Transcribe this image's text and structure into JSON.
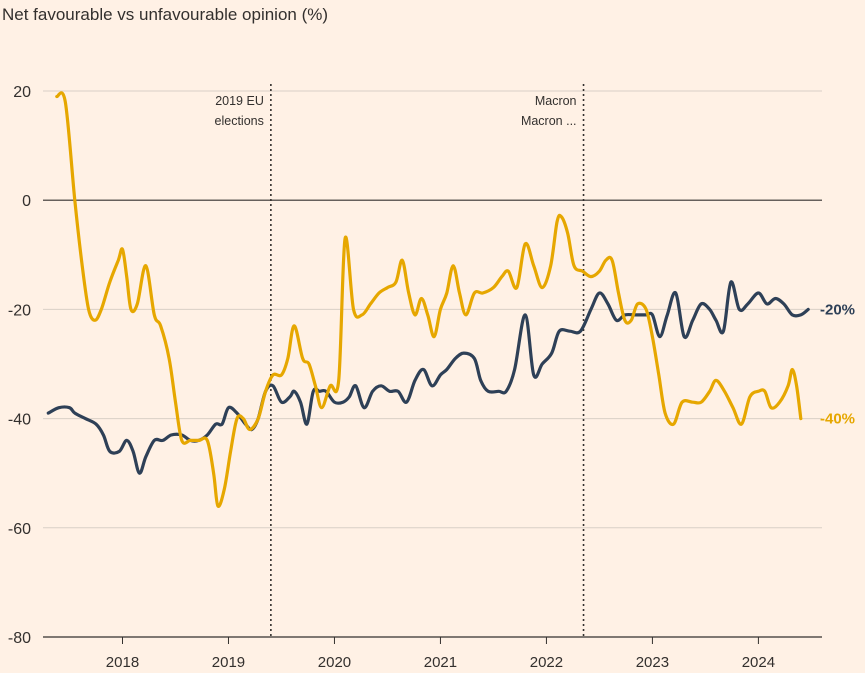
{
  "chart_data": {
    "type": "line",
    "title": "Net favourable vs unfavourable opinion (%)",
    "xlabel": "",
    "ylabel": "",
    "ylim": [
      -80,
      20
    ],
    "xlim": [
      2017.25,
      2024.6
    ],
    "yticks": [
      20,
      0,
      -20,
      -40,
      -60,
      -80
    ],
    "xticks": [
      {
        "label": "2018",
        "value": 2018
      },
      {
        "label": "2019",
        "value": 2019
      },
      {
        "label": "2020",
        "value": 2020
      },
      {
        "label": "2021",
        "value": 2021
      },
      {
        "label": "2022",
        "value": 2022
      },
      {
        "label": "2023",
        "value": 2023
      },
      {
        "label": "2024",
        "value": 2024
      }
    ],
    "annotations": [
      {
        "x": 2019.4,
        "lines": [
          "2019 EU",
          "elections"
        ]
      },
      {
        "x": 2022.35,
        "lines": [
          "Macron",
          "Macron ..."
        ]
      }
    ],
    "colors": {
      "background": "#fff1e5",
      "grid": "#d9d0c6",
      "zero": "#33302e",
      "navy": "#2e4057",
      "gold": "#e6a700"
    },
    "series": [
      {
        "name": "navy",
        "color": "#2e4057",
        "end_label": "-20%",
        "points": [
          [
            2017.3,
            -39
          ],
          [
            2017.4,
            -38
          ],
          [
            2017.5,
            -38
          ],
          [
            2017.55,
            -39
          ],
          [
            2017.65,
            -40
          ],
          [
            2017.75,
            -41
          ],
          [
            2017.82,
            -43
          ],
          [
            2017.88,
            -46
          ],
          [
            2017.97,
            -46
          ],
          [
            2018.04,
            -44
          ],
          [
            2018.1,
            -46
          ],
          [
            2018.16,
            -50
          ],
          [
            2018.22,
            -47
          ],
          [
            2018.3,
            -44
          ],
          [
            2018.38,
            -44
          ],
          [
            2018.46,
            -43
          ],
          [
            2018.56,
            -43
          ],
          [
            2018.64,
            -44
          ],
          [
            2018.72,
            -44
          ],
          [
            2018.8,
            -43
          ],
          [
            2018.88,
            -41
          ],
          [
            2018.94,
            -41
          ],
          [
            2019.0,
            -38
          ],
          [
            2019.08,
            -39
          ],
          [
            2019.16,
            -41
          ],
          [
            2019.22,
            -42
          ],
          [
            2019.28,
            -40
          ],
          [
            2019.35,
            -35
          ],
          [
            2019.42,
            -34
          ],
          [
            2019.5,
            -37
          ],
          [
            2019.58,
            -36
          ],
          [
            2019.62,
            -35
          ],
          [
            2019.68,
            -37
          ],
          [
            2019.74,
            -41
          ],
          [
            2019.8,
            -35
          ],
          [
            2019.86,
            -35
          ],
          [
            2019.92,
            -35
          ],
          [
            2020.0,
            -37
          ],
          [
            2020.08,
            -37
          ],
          [
            2020.14,
            -36
          ],
          [
            2020.2,
            -34
          ],
          [
            2020.28,
            -38
          ],
          [
            2020.36,
            -35
          ],
          [
            2020.44,
            -34
          ],
          [
            2020.52,
            -35
          ],
          [
            2020.6,
            -35
          ],
          [
            2020.68,
            -37
          ],
          [
            2020.76,
            -33
          ],
          [
            2020.84,
            -31
          ],
          [
            2020.92,
            -34
          ],
          [
            2021.0,
            -32
          ],
          [
            2021.06,
            -31
          ],
          [
            2021.14,
            -29
          ],
          [
            2021.22,
            -28
          ],
          [
            2021.32,
            -29
          ],
          [
            2021.38,
            -33
          ],
          [
            2021.45,
            -35
          ],
          [
            2021.55,
            -35
          ],
          [
            2021.62,
            -35
          ],
          [
            2021.7,
            -31
          ],
          [
            2021.8,
            -21
          ],
          [
            2021.88,
            -32
          ],
          [
            2021.96,
            -30
          ],
          [
            2022.05,
            -28
          ],
          [
            2022.12,
            -24
          ],
          [
            2022.22,
            -24
          ],
          [
            2022.32,
            -24
          ],
          [
            2022.42,
            -20
          ],
          [
            2022.5,
            -17
          ],
          [
            2022.58,
            -19
          ],
          [
            2022.66,
            -22
          ],
          [
            2022.74,
            -21
          ],
          [
            2022.84,
            -21
          ],
          [
            2022.94,
            -21
          ],
          [
            2023.0,
            -21
          ],
          [
            2023.07,
            -25
          ],
          [
            2023.14,
            -21
          ],
          [
            2023.22,
            -17
          ],
          [
            2023.3,
            -25
          ],
          [
            2023.38,
            -22
          ],
          [
            2023.46,
            -19
          ],
          [
            2023.54,
            -20
          ],
          [
            2023.6,
            -22
          ],
          [
            2023.67,
            -24
          ],
          [
            2023.74,
            -15
          ],
          [
            2023.82,
            -20
          ],
          [
            2023.9,
            -19
          ],
          [
            2024.0,
            -17
          ],
          [
            2024.08,
            -19
          ],
          [
            2024.16,
            -18
          ],
          [
            2024.24,
            -19
          ],
          [
            2024.32,
            -21
          ],
          [
            2024.4,
            -21
          ],
          [
            2024.47,
            -20
          ]
        ]
      },
      {
        "name": "gold",
        "color": "#e6a700",
        "end_label": "-40%",
        "points": [
          [
            2017.38,
            19
          ],
          [
            2017.46,
            18
          ],
          [
            2017.55,
            0
          ],
          [
            2017.62,
            -12
          ],
          [
            2017.68,
            -20
          ],
          [
            2017.74,
            -22
          ],
          [
            2017.8,
            -20
          ],
          [
            2017.88,
            -15
          ],
          [
            2017.96,
            -11
          ],
          [
            2018.0,
            -9
          ],
          [
            2018.04,
            -14
          ],
          [
            2018.08,
            -20
          ],
          [
            2018.14,
            -19
          ],
          [
            2018.22,
            -12
          ],
          [
            2018.3,
            -21
          ],
          [
            2018.36,
            -23
          ],
          [
            2018.44,
            -29
          ],
          [
            2018.5,
            -37
          ],
          [
            2018.56,
            -44
          ],
          [
            2018.64,
            -44
          ],
          [
            2018.72,
            -44
          ],
          [
            2018.8,
            -44
          ],
          [
            2018.86,
            -50
          ],
          [
            2018.9,
            -56
          ],
          [
            2018.96,
            -53
          ],
          [
            2019.02,
            -46
          ],
          [
            2019.08,
            -40
          ],
          [
            2019.14,
            -40
          ],
          [
            2019.2,
            -42
          ],
          [
            2019.28,
            -40
          ],
          [
            2019.35,
            -35
          ],
          [
            2019.42,
            -32
          ],
          [
            2019.5,
            -32
          ],
          [
            2019.56,
            -29
          ],
          [
            2019.62,
            -23
          ],
          [
            2019.7,
            -29
          ],
          [
            2019.76,
            -30
          ],
          [
            2019.82,
            -34
          ],
          [
            2019.88,
            -38
          ],
          [
            2019.96,
            -34
          ],
          [
            2020.04,
            -33
          ],
          [
            2020.1,
            -7
          ],
          [
            2020.18,
            -20
          ],
          [
            2020.26,
            -21
          ],
          [
            2020.34,
            -19
          ],
          [
            2020.42,
            -17
          ],
          [
            2020.5,
            -16
          ],
          [
            2020.58,
            -15
          ],
          [
            2020.64,
            -11
          ],
          [
            2020.7,
            -17
          ],
          [
            2020.76,
            -21
          ],
          [
            2020.82,
            -18
          ],
          [
            2020.88,
            -21
          ],
          [
            2020.94,
            -25
          ],
          [
            2021.0,
            -20
          ],
          [
            2021.06,
            -17
          ],
          [
            2021.12,
            -12
          ],
          [
            2021.18,
            -17
          ],
          [
            2021.24,
            -21
          ],
          [
            2021.32,
            -17
          ],
          [
            2021.4,
            -17
          ],
          [
            2021.5,
            -16
          ],
          [
            2021.58,
            -14
          ],
          [
            2021.64,
            -13
          ],
          [
            2021.72,
            -16
          ],
          [
            2021.8,
            -8
          ],
          [
            2021.88,
            -12
          ],
          [
            2021.96,
            -16
          ],
          [
            2022.04,
            -12
          ],
          [
            2022.1,
            -4
          ],
          [
            2022.14,
            -3
          ],
          [
            2022.2,
            -6
          ],
          [
            2022.26,
            -12
          ],
          [
            2022.34,
            -13
          ],
          [
            2022.42,
            -14
          ],
          [
            2022.5,
            -13
          ],
          [
            2022.56,
            -11
          ],
          [
            2022.62,
            -11
          ],
          [
            2022.68,
            -17
          ],
          [
            2022.74,
            -22
          ],
          [
            2022.8,
            -22
          ],
          [
            2022.86,
            -19
          ],
          [
            2022.94,
            -20
          ],
          [
            2023.0,
            -25
          ],
          [
            2023.06,
            -32
          ],
          [
            2023.12,
            -39
          ],
          [
            2023.2,
            -41
          ],
          [
            2023.28,
            -37
          ],
          [
            2023.38,
            -37
          ],
          [
            2023.46,
            -37
          ],
          [
            2023.54,
            -35
          ],
          [
            2023.6,
            -33
          ],
          [
            2023.68,
            -35
          ],
          [
            2023.76,
            -38
          ],
          [
            2023.84,
            -41
          ],
          [
            2023.92,
            -36
          ],
          [
            2024.0,
            -35
          ],
          [
            2024.06,
            -35
          ],
          [
            2024.12,
            -38
          ],
          [
            2024.2,
            -37
          ],
          [
            2024.28,
            -34
          ],
          [
            2024.32,
            -31
          ],
          [
            2024.36,
            -34
          ],
          [
            2024.4,
            -40
          ]
        ]
      }
    ]
  }
}
